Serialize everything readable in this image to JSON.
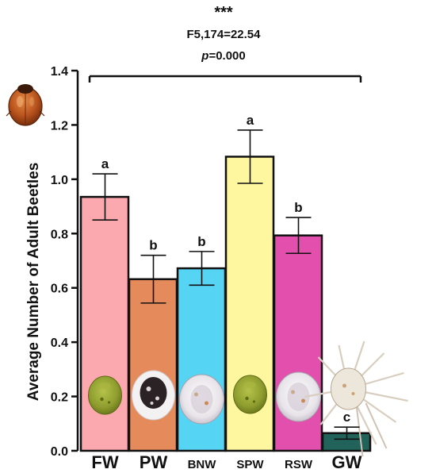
{
  "chart_data": {
    "type": "bar",
    "title_stars": "***",
    "stat_line": "F5,174=22.54",
    "p_prefix": "p",
    "p_suffix": "=0.000",
    "ylabel": "Average Number of Adult Beetles",
    "xlabel": "",
    "ylim": [
      0,
      1.4
    ],
    "yticks": [
      "0.0",
      "0.2",
      "0.4",
      "0.6",
      "0.8",
      "1.0",
      "1.2",
      "1.4"
    ],
    "categories": [
      "FW",
      "PW",
      "BNW",
      "SPW",
      "RSW",
      "GW"
    ],
    "values": [
      0.935,
      0.632,
      0.672,
      1.083,
      0.793,
      0.065
    ],
    "errors": [
      0.085,
      0.088,
      0.062,
      0.098,
      0.066,
      0.022
    ],
    "letters": [
      "a",
      "b",
      "b",
      "a",
      "b",
      "c"
    ],
    "colors": [
      "#FBA8AF",
      "#E58B5B",
      "#55D4F4",
      "#FEF7A0",
      "#E24FAC",
      "#21625A"
    ],
    "bar_images": [
      "green-mealybug-icon",
      "black-white-mealybug-icon",
      "white-fluffy-mealybug-icon",
      "green-mealybug-icon",
      "white-fluffy-mealybug-icon",
      "long-tailed-mealybug-icon"
    ],
    "decor_icon": "ladybird-beetle-icon"
  }
}
